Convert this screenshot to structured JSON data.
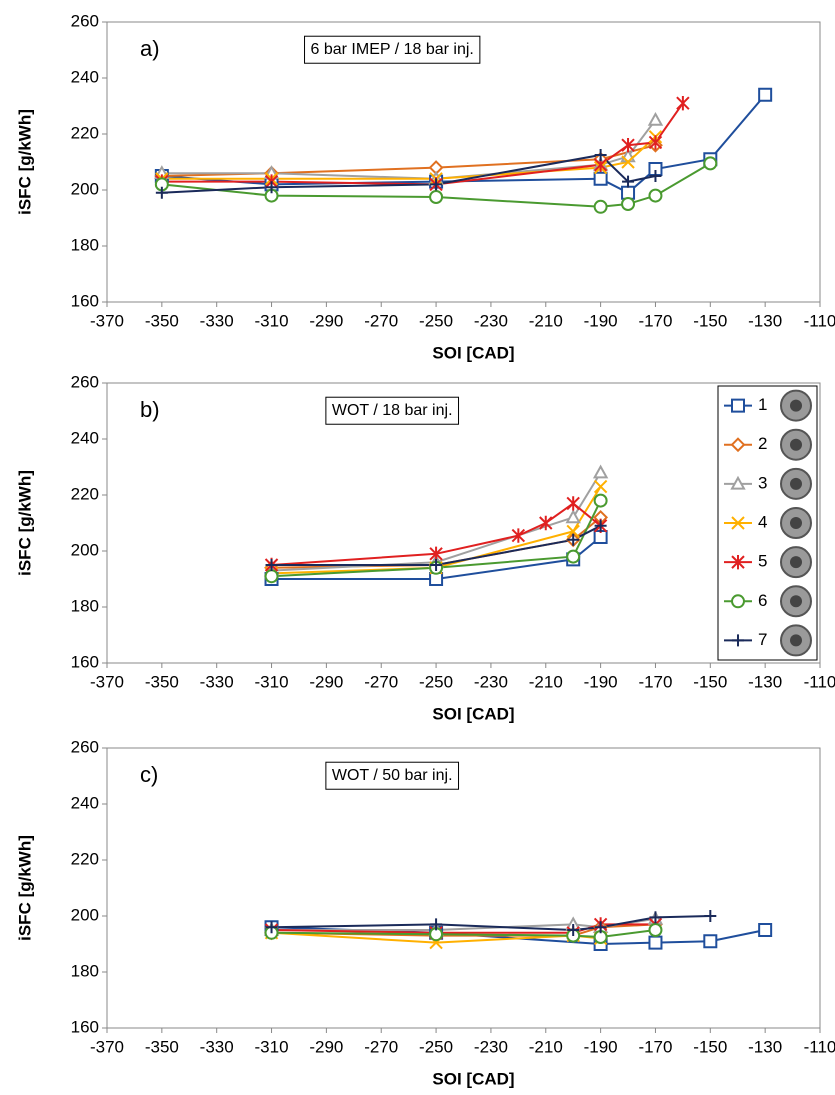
{
  "chart_data": [
    {
      "type": "line",
      "label": "a)",
      "title": "6 bar IMEP / 18 bar inj.",
      "xlabel": "SOI [CAD]",
      "ylabel": "iSFC [g/kWh]",
      "xlim": [
        -370,
        -110
      ],
      "xticks": [
        -370,
        -350,
        -330,
        -310,
        -290,
        -270,
        -250,
        -230,
        -210,
        -190,
        -170,
        -150,
        -130,
        -110
      ],
      "ylim": [
        160,
        260
      ],
      "yticks": [
        160,
        180,
        200,
        220,
        240,
        260
      ],
      "series": [
        {
          "color": "#1f4e9c",
          "marker": "square",
          "x": [
            -350,
            -310,
            -250,
            -190,
            -180,
            -170,
            -150,
            -130
          ],
          "values": [
            205,
            202,
            203,
            204,
            199,
            207.5,
            211,
            234
          ]
        },
        {
          "color": "#e07020",
          "marker": "diamond",
          "x": [
            -350,
            -310,
            -250,
            -190,
            -170
          ],
          "values": [
            205,
            206,
            208,
            211,
            216
          ]
        },
        {
          "color": "#a0a0a0",
          "marker": "triangle",
          "x": [
            -350,
            -310,
            -250,
            -190,
            -180,
            -170
          ],
          "values": [
            206,
            206,
            204,
            209,
            212,
            225
          ]
        },
        {
          "color": "#ffb000",
          "marker": "x",
          "x": [
            -350,
            -310,
            -250,
            -190,
            -180,
            -170
          ],
          "values": [
            204,
            204,
            204,
            208,
            210,
            219
          ]
        },
        {
          "color": "#e02020",
          "marker": "star",
          "x": [
            -350,
            -310,
            -250,
            -190,
            -180,
            -170,
            -160
          ],
          "values": [
            203,
            203,
            202,
            209,
            216,
            217,
            231
          ]
        },
        {
          "color": "#4a9a30",
          "marker": "circle",
          "x": [
            -350,
            -310,
            -250,
            -190,
            -180,
            -170,
            -150
          ],
          "values": [
            202,
            198,
            197.5,
            194,
            195,
            198,
            209.5
          ]
        },
        {
          "color": "#1a2a5a",
          "marker": "plus",
          "x": [
            -350,
            -310,
            -250,
            -190,
            -180,
            -170
          ],
          "values": [
            199,
            201,
            202,
            212.5,
            203,
            205
          ]
        }
      ]
    },
    {
      "type": "line",
      "label": "b)",
      "title": "WOT / 18 bar inj.",
      "xlabel": "SOI [CAD]",
      "ylabel": "iSFC [g/kWh]",
      "xlim": [
        -370,
        -110
      ],
      "xticks": [
        -370,
        -350,
        -330,
        -310,
        -290,
        -270,
        -250,
        -230,
        -210,
        -190,
        -170,
        -150,
        -130,
        -110
      ],
      "ylim": [
        160,
        260
      ],
      "yticks": [
        160,
        180,
        200,
        220,
        240,
        260
      ],
      "legend": "upper right",
      "series": [
        {
          "name": "1",
          "color": "#1f4e9c",
          "marker": "square",
          "x": [
            -310,
            -250,
            -200,
            -190
          ],
          "values": [
            190,
            190,
            197,
            205
          ]
        },
        {
          "name": "2",
          "color": "#e07020",
          "marker": "diamond",
          "x": [
            -310,
            -250,
            -200,
            -190
          ],
          "values": [
            194,
            195,
            204,
            212
          ]
        },
        {
          "name": "3",
          "color": "#a0a0a0",
          "marker": "triangle",
          "x": [
            -310,
            -250,
            -200,
            -190
          ],
          "values": [
            193,
            196,
            212,
            228
          ]
        },
        {
          "name": "4",
          "color": "#ffb000",
          "marker": "x",
          "x": [
            -310,
            -250,
            -200,
            -190
          ],
          "values": [
            192,
            194,
            207,
            223
          ]
        },
        {
          "name": "5",
          "color": "#e02020",
          "marker": "star",
          "x": [
            -310,
            -250,
            -220,
            -210,
            -200,
            -190
          ],
          "values": [
            195,
            199,
            205.5,
            210,
            217,
            209
          ]
        },
        {
          "name": "6",
          "color": "#4a9a30",
          "marker": "circle",
          "x": [
            -310,
            -250,
            -200,
            -190
          ],
          "values": [
            191,
            194,
            198,
            218
          ]
        },
        {
          "name": "7",
          "color": "#1a2a5a",
          "marker": "plus",
          "x": [
            -310,
            -250,
            -200,
            -190
          ],
          "values": [
            195,
            195,
            204,
            209
          ]
        }
      ]
    },
    {
      "type": "line",
      "label": "c)",
      "title": "WOT / 50 bar inj.",
      "xlabel": "SOI [CAD]",
      "ylabel": "iSFC [g/kWh]",
      "xlim": [
        -370,
        -110
      ],
      "xticks": [
        -370,
        -350,
        -330,
        -310,
        -290,
        -270,
        -250,
        -230,
        -210,
        -190,
        -170,
        -150,
        -130,
        -110
      ],
      "ylim": [
        160,
        260
      ],
      "yticks": [
        160,
        180,
        200,
        220,
        240,
        260
      ],
      "series": [
        {
          "color": "#1f4e9c",
          "marker": "square",
          "x": [
            -310,
            -250,
            -190,
            -170,
            -150,
            -130
          ],
          "values": [
            196,
            194,
            190,
            190.5,
            191,
            195
          ]
        },
        {
          "color": "#e07020",
          "marker": "diamond",
          "x": [
            -310,
            -250,
            -200,
            -190,
            -170
          ],
          "values": [
            194,
            193,
            193,
            196,
            197
          ]
        },
        {
          "color": "#a0a0a0",
          "marker": "triangle",
          "x": [
            -310,
            -250,
            -200,
            -190,
            -170
          ],
          "values": [
            195,
            195,
            197,
            196,
            199
          ]
        },
        {
          "color": "#ffb000",
          "marker": "x",
          "x": [
            -310,
            -250,
            -200,
            -190
          ],
          "values": [
            194,
            190.5,
            193,
            192
          ]
        },
        {
          "color": "#e02020",
          "marker": "star",
          "x": [
            -310,
            -250,
            -200,
            -190,
            -170
          ],
          "values": [
            195,
            194,
            194,
            197,
            197
          ]
        },
        {
          "color": "#4a9a30",
          "marker": "circle",
          "x": [
            -310,
            -250,
            -200,
            -190,
            -170
          ],
          "values": [
            194,
            193.5,
            193,
            192.5,
            195
          ]
        },
        {
          "color": "#1a2a5a",
          "marker": "plus",
          "x": [
            -310,
            -250,
            -200,
            -190,
            -170,
            -150
          ],
          "values": [
            196,
            197,
            195,
            196,
            199.5,
            200
          ]
        }
      ]
    }
  ]
}
